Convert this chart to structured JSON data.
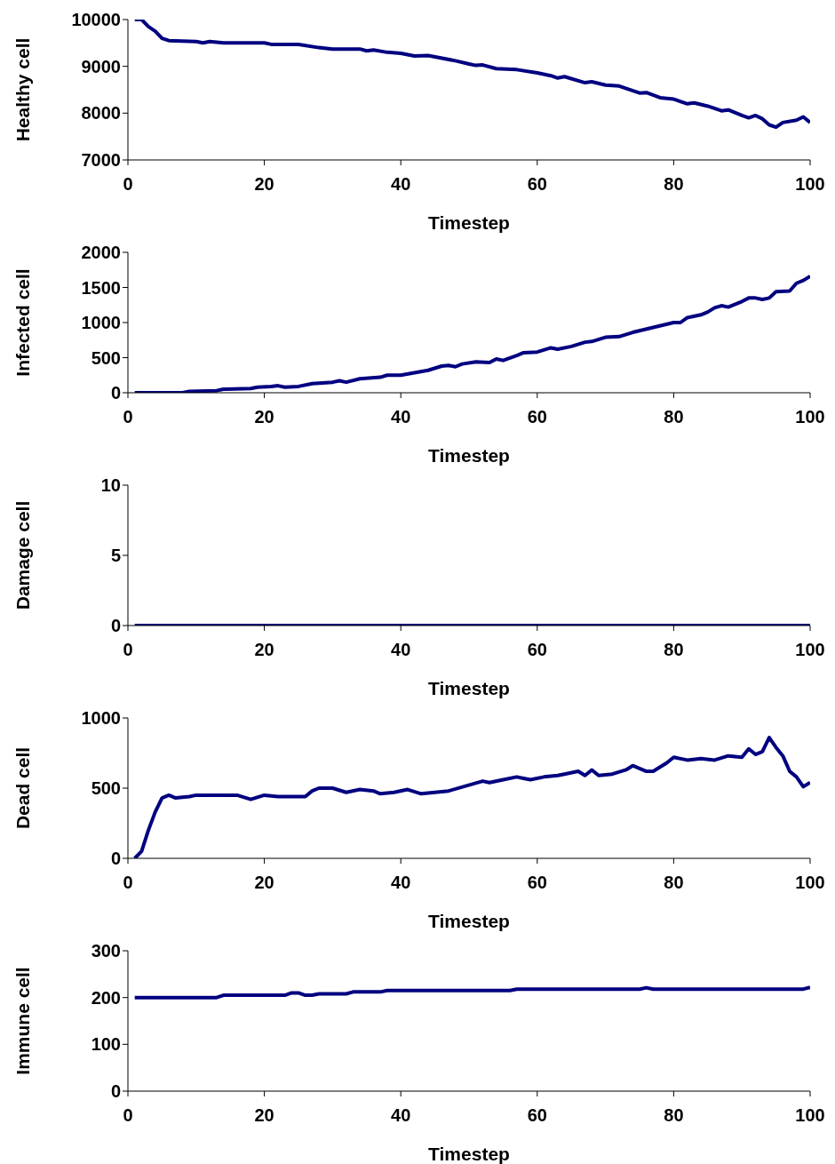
{
  "chart_data": [
    {
      "type": "line",
      "xlabel": "Timestep",
      "ylabel": "Healthy cell",
      "color": "#000080",
      "xlim": [
        0,
        100
      ],
      "xticks": [
        0,
        20,
        40,
        60,
        80,
        100
      ],
      "ylim": [
        7000,
        10000
      ],
      "yticks": [
        7000,
        8000,
        9000,
        10000
      ],
      "grid": false,
      "x": [
        1,
        2,
        3,
        4,
        5,
        6,
        10,
        11,
        12,
        14,
        20,
        21,
        25,
        28,
        30,
        34,
        35,
        36,
        38,
        40,
        42,
        44,
        48,
        50,
        51,
        52,
        54,
        57,
        60,
        62,
        63,
        64,
        67,
        68,
        70,
        72,
        75,
        76,
        78,
        80,
        82,
        83,
        85,
        87,
        88,
        90,
        91,
        92,
        93,
        94,
        95,
        96,
        98,
        99,
        100
      ],
      "values": [
        10000,
        10000,
        9850,
        9750,
        9600,
        9550,
        9530,
        9500,
        9530,
        9500,
        9500,
        9470,
        9470,
        9400,
        9370,
        9370,
        9330,
        9350,
        9300,
        9280,
        9220,
        9230,
        9120,
        9050,
        9020,
        9030,
        8950,
        8930,
        8860,
        8800,
        8750,
        8780,
        8650,
        8670,
        8600,
        8580,
        8430,
        8440,
        8330,
        8300,
        8200,
        8220,
        8150,
        8050,
        8070,
        7950,
        7900,
        7950,
        7880,
        7750,
        7700,
        7800,
        7850,
        7920,
        7800
      ]
    },
    {
      "type": "line",
      "xlabel": "Timestep",
      "ylabel": "Infected cell",
      "color": "#000080",
      "xlim": [
        0,
        100
      ],
      "xticks": [
        0,
        20,
        40,
        60,
        80,
        100
      ],
      "ylim": [
        0,
        2000
      ],
      "yticks": [
        0,
        500,
        1000,
        1500,
        2000
      ],
      "grid": false,
      "x": [
        1,
        8,
        9,
        13,
        14,
        18,
        19,
        21,
        22,
        23,
        25,
        27,
        30,
        31,
        32,
        34,
        37,
        38,
        40,
        44,
        46,
        47,
        48,
        49,
        51,
        53,
        54,
        55,
        57,
        58,
        60,
        62,
        63,
        65,
        67,
        68,
        70,
        72,
        74,
        80,
        81,
        82,
        84,
        85,
        86,
        87,
        88,
        90,
        91,
        92,
        93,
        94,
        95,
        97,
        98,
        99,
        100
      ],
      "values": [
        0,
        0,
        20,
        30,
        50,
        60,
        80,
        90,
        100,
        80,
        90,
        130,
        150,
        170,
        150,
        200,
        220,
        250,
        250,
        320,
        380,
        390,
        370,
        410,
        440,
        430,
        480,
        460,
        530,
        570,
        580,
        640,
        620,
        660,
        720,
        730,
        790,
        800,
        860,
        1000,
        1000,
        1070,
        1110,
        1150,
        1210,
        1240,
        1220,
        1300,
        1350,
        1350,
        1330,
        1350,
        1440,
        1450,
        1560,
        1600,
        1660
      ]
    },
    {
      "type": "line",
      "xlabel": "Timestep",
      "ylabel": "Damage cell",
      "color": "#000080",
      "xlim": [
        0,
        100
      ],
      "xticks": [
        0,
        20,
        40,
        60,
        80,
        100
      ],
      "ylim": [
        0,
        10
      ],
      "yticks": [
        0,
        5,
        10
      ],
      "grid": false,
      "x": [
        1,
        100
      ],
      "values": [
        0,
        0
      ]
    },
    {
      "type": "line",
      "xlabel": "Timestep",
      "ylabel": "Dead cell",
      "color": "#000080",
      "xlim": [
        0,
        100
      ],
      "xticks": [
        0,
        20,
        40,
        60,
        80,
        100
      ],
      "ylim": [
        0,
        1000
      ],
      "yticks": [
        0,
        500,
        1000
      ],
      "grid": false,
      "x": [
        1,
        2,
        3,
        4,
        5,
        6,
        7,
        9,
        10,
        16,
        18,
        20,
        22,
        26,
        27,
        28,
        30,
        32,
        34,
        36,
        37,
        39,
        41,
        43,
        45,
        47,
        52,
        53,
        55,
        57,
        58,
        59,
        61,
        63,
        64,
        66,
        67,
        68,
        69,
        71,
        73,
        74,
        76,
        77,
        79,
        80,
        82,
        84,
        86,
        88,
        90,
        91,
        92,
        93,
        94,
        95,
        96,
        97,
        98,
        99,
        100
      ],
      "values": [
        0,
        50,
        200,
        330,
        430,
        450,
        430,
        440,
        450,
        450,
        420,
        450,
        440,
        440,
        480,
        500,
        500,
        470,
        490,
        480,
        460,
        470,
        490,
        460,
        470,
        480,
        550,
        540,
        560,
        580,
        570,
        560,
        580,
        590,
        600,
        620,
        590,
        630,
        590,
        600,
        630,
        660,
        620,
        620,
        680,
        720,
        700,
        710,
        700,
        730,
        720,
        780,
        740,
        760,
        860,
        790,
        730,
        620,
        580,
        510,
        540
      ]
    },
    {
      "type": "line",
      "xlabel": "Timestep",
      "ylabel": "Immune cell",
      "color": "#000080",
      "xlim": [
        0,
        100
      ],
      "xticks": [
        0,
        20,
        40,
        60,
        80,
        100
      ],
      "ylim": [
        0,
        300
      ],
      "yticks": [
        0,
        100,
        200,
        300
      ],
      "grid": false,
      "x": [
        1,
        13,
        14,
        23,
        24,
        25,
        26,
        27,
        28,
        32,
        33,
        37,
        38,
        56,
        57,
        75,
        76,
        77,
        99,
        100
      ],
      "values": [
        200,
        200,
        205,
        205,
        210,
        210,
        205,
        205,
        208,
        208,
        212,
        212,
        215,
        215,
        218,
        218,
        221,
        218,
        218,
        222
      ]
    }
  ]
}
